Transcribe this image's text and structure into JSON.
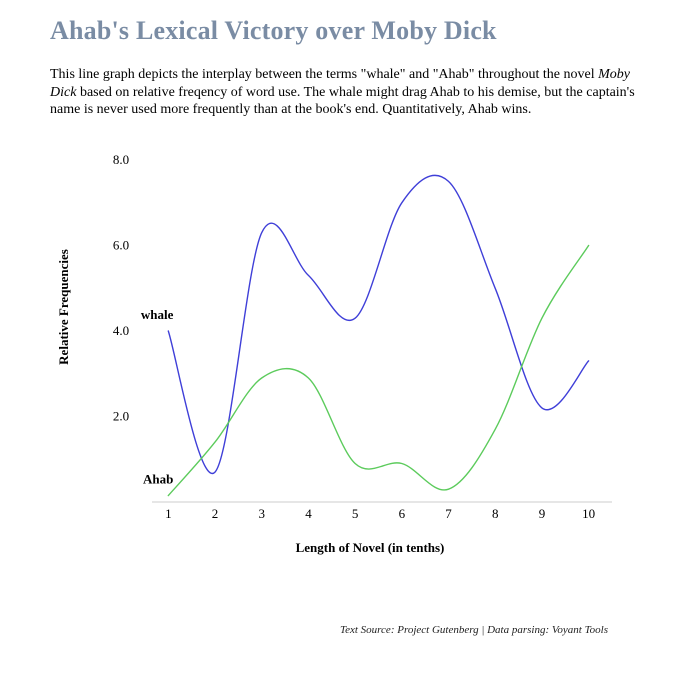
{
  "header": {
    "title": "Ahab's Lexical Victory over Moby Dick",
    "description_part1": "This line graph depicts the interplay between the terms \"whale\" and \"Ahab\" throughout the novel ",
    "description_italic": "Moby Dick",
    "description_part2": " based on relative freqency of word use.  The whale might drag Ahab to his demise, but the captain's name is never used more frequently than at the book's end.  Quantitatively, Ahab wins."
  },
  "footer": {
    "source": "Text Source: Project Gutenberg | Data parsing: Voyant Tools"
  },
  "chart_data": {
    "type": "line",
    "title": "",
    "xlabel": "Length of Novel (in tenths)",
    "ylabel": "Relative Frequencies",
    "x": [
      1,
      2,
      3,
      4,
      5,
      6,
      7,
      8,
      9,
      10
    ],
    "xticks": [
      "1",
      "2",
      "3",
      "4",
      "5",
      "6",
      "7",
      "8",
      "9",
      "10"
    ],
    "yticks": [
      "2.0",
      "4.0",
      "6.0",
      "8.0"
    ],
    "ytick_values": [
      2,
      4,
      6,
      8
    ],
    "ylim": [
      0,
      8
    ],
    "xlim": [
      0.65,
      10.5
    ],
    "grid": false,
    "series": [
      {
        "name": "whale",
        "color": "#3f3fd8",
        "values": [
          4.0,
          0.7,
          6.3,
          5.3,
          4.3,
          7.0,
          7.5,
          5.0,
          2.2,
          3.3
        ]
      },
      {
        "name": "Ahab",
        "color": "#5ccb5c",
        "values": [
          0.15,
          1.4,
          2.9,
          2.9,
          0.9,
          0.9,
          0.3,
          1.7,
          4.3,
          6.0
        ]
      }
    ]
  }
}
